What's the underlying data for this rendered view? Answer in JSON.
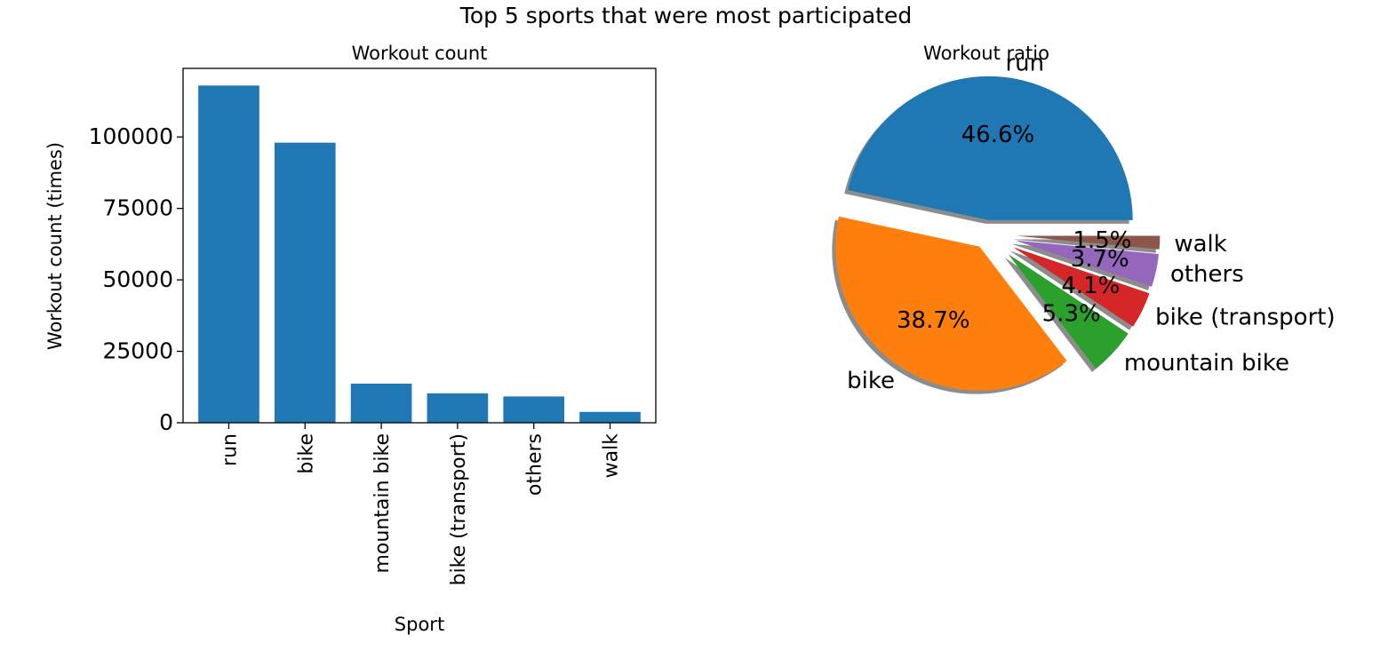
{
  "figure": {
    "suptitle": "Top 5 sports that were most participated"
  },
  "chart_data": [
    {
      "type": "bar",
      "title": "Workout count",
      "xlabel": "Sport",
      "ylabel": "Workout count (times)",
      "categories": [
        "run",
        "bike",
        "mountain bike",
        "bike (transport)",
        "others",
        "walk"
      ],
      "values": [
        118000,
        98000,
        13700,
        10300,
        9200,
        3800
      ],
      "ylim": [
        0,
        124000
      ],
      "yticks": [
        0,
        25000,
        50000,
        75000,
        100000
      ],
      "color": "#1f77b4",
      "grid": false
    },
    {
      "type": "pie",
      "title": "Workout ratio",
      "labels": [
        "run",
        "bike",
        "mountain bike",
        "bike (transport)",
        "others",
        "walk"
      ],
      "values": [
        46.6,
        38.7,
        5.3,
        4.1,
        3.7,
        1.5
      ],
      "value_labels": [
        "46.6%",
        "38.7%",
        "5.3%",
        "4.1%",
        "3.7%",
        "1.5%"
      ],
      "colors": [
        "#1f77b4",
        "#ff7f0e",
        "#2ca02c",
        "#d62728",
        "#9467bd",
        "#8c564b"
      ],
      "explode": [
        0.1,
        0.1,
        0.2,
        0.2,
        0.2,
        0.2
      ],
      "shadow": true,
      "startangle": 0
    }
  ]
}
